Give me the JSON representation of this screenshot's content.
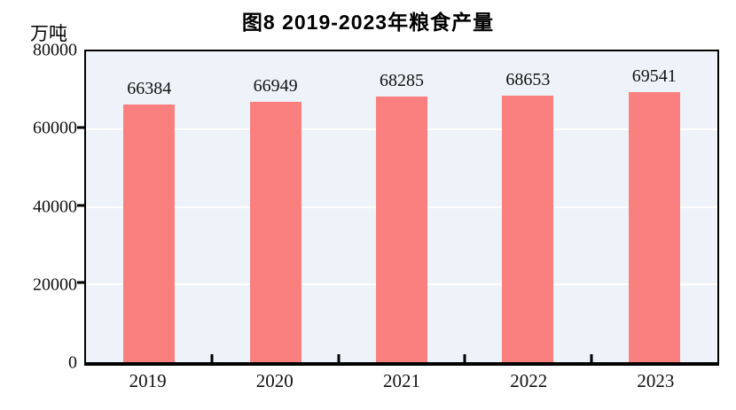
{
  "chart_data": {
    "type": "bar",
    "title": "图8  2019-2023年粮食产量",
    "unit_label": "万吨",
    "categories": [
      "2019",
      "2020",
      "2021",
      "2022",
      "2023"
    ],
    "values": [
      66384,
      66949,
      68285,
      68653,
      69541
    ],
    "xlabel": "",
    "ylabel": "万吨",
    "ylim": [
      0,
      80000
    ],
    "yticks": [
      0,
      20000,
      40000,
      60000,
      80000
    ],
    "gridline_ticks": [
      20000,
      40000,
      60000
    ],
    "grid": true,
    "legend_position": "none",
    "colors": {
      "bar": "#FA8080",
      "plot_background": "#EDF3F8",
      "gridline": "#FFFFFF",
      "axis": "#000000",
      "text": "#111111"
    }
  }
}
